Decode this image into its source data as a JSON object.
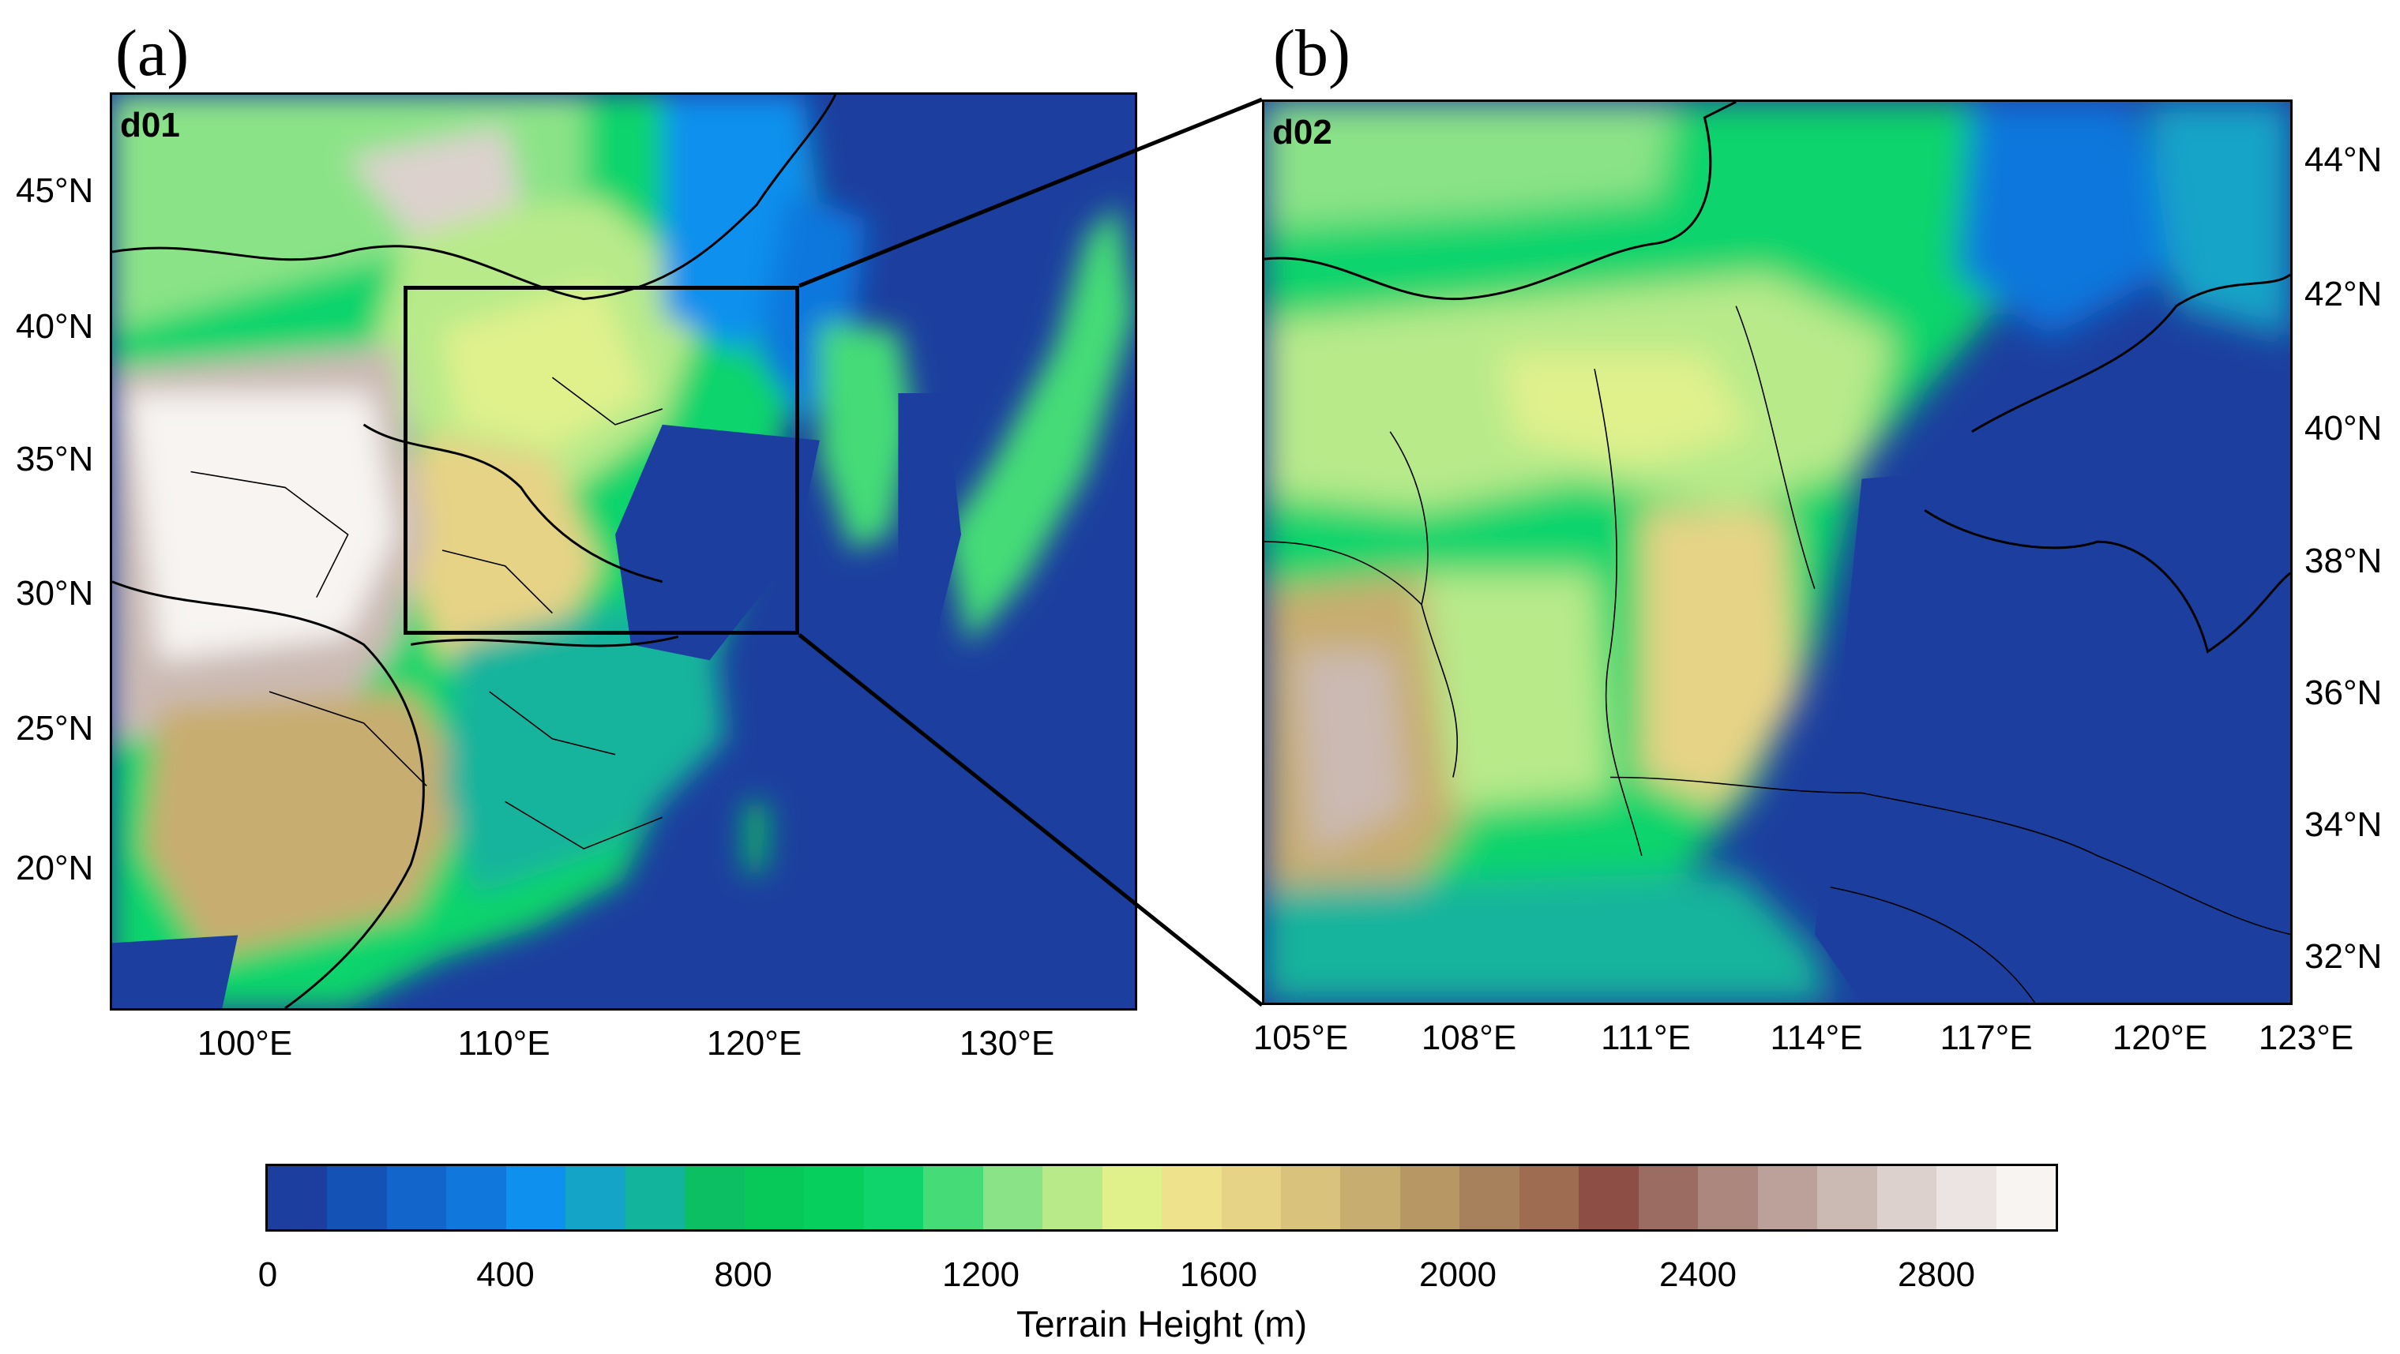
{
  "panels": [
    {
      "label": "(a)",
      "domain": "d01",
      "lat_ticks": [
        "45°N",
        "40°N",
        "35°N",
        "30°N",
        "25°N",
        "20°N"
      ],
      "lon_ticks": [
        "100°E",
        "110°E",
        "120°E",
        "130°E"
      ]
    },
    {
      "label": "(b)",
      "domain": "d02",
      "lat_ticks": [
        "44°N",
        "42°N",
        "40°N",
        "38°N",
        "36°N",
        "34°N",
        "32°N"
      ],
      "lon_ticks": [
        "105°E",
        "108°E",
        "111°E",
        "114°E",
        "117°E",
        "120°E",
        "123°E"
      ]
    }
  ],
  "colorbar": {
    "title": "Terrain Height (m)",
    "tick_labels": [
      "0",
      "400",
      "800",
      "1200",
      "1600",
      "2000",
      "2400",
      "2800"
    ],
    "min": 0,
    "max": 3000,
    "step": 100,
    "colors": [
      "#1c3f9f",
      "#1452b5",
      "#1165cb",
      "#1077dd",
      "#0d90ee",
      "#13a4c8",
      "#12b49c",
      "#0dbf63",
      "#07c95a",
      "#06cf5e",
      "#0fd46c",
      "#45dc77",
      "#8be387",
      "#b8ea8a",
      "#e0f18c",
      "#eee38c",
      "#e6d386",
      "#d9c27c",
      "#c8ad70",
      "#b79764",
      "#a7815c",
      "#9d6c51",
      "#8c4e45",
      "#9b6c62",
      "#ab877e",
      "#bba19a",
      "#cbbab4",
      "#dcd1cd",
      "#ebe4e2",
      "#f7f4f2"
    ]
  },
  "colors": {
    "sea": "#1c3f9f",
    "lowland": "#2fc46a",
    "highland": "#f6f3f1"
  }
}
